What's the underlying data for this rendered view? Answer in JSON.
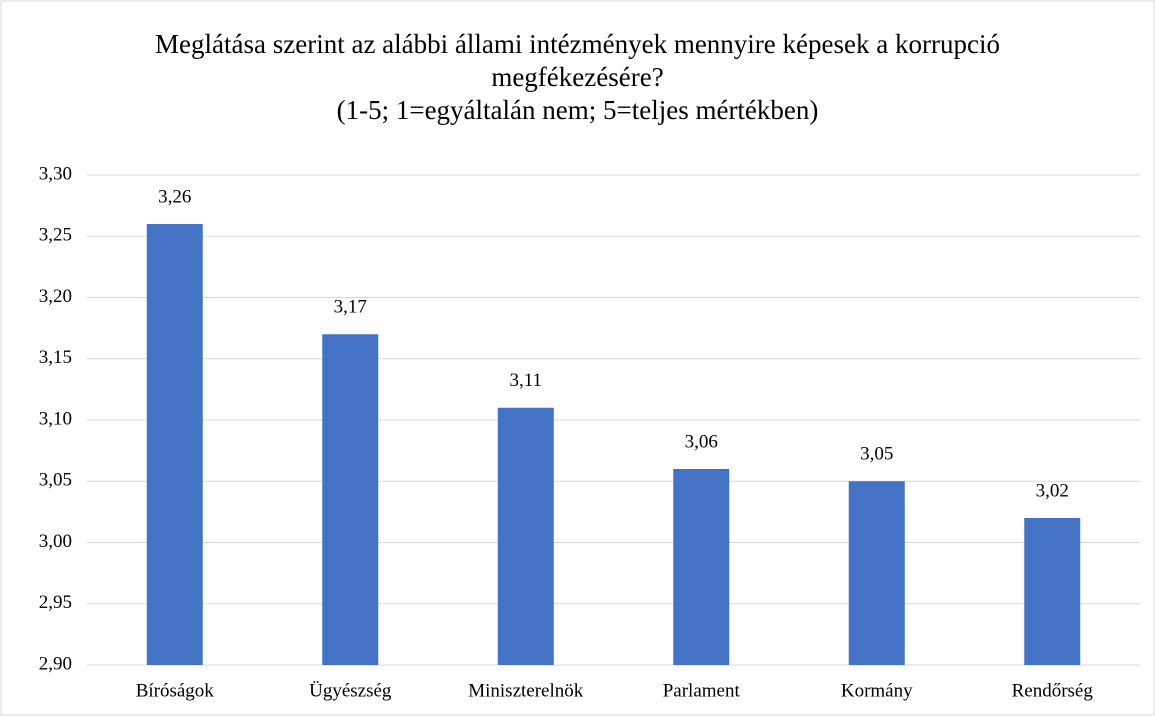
{
  "chart_data": {
    "type": "bar",
    "title": "Meglátása szerint az alábbi állami intézmények mennyire képesek a korrupció megfékezésére?",
    "subtitle": "(1-5; 1=egyáltalán nem; 5=teljes mértékben)",
    "categories": [
      "Bíróságok",
      "Ügyészség",
      "Miniszterelnök",
      "Parlament",
      "Kormány",
      "Rendőrség"
    ],
    "values": [
      3.26,
      3.17,
      3.11,
      3.06,
      3.05,
      3.02
    ],
    "value_labels": [
      "3,26",
      "3,17",
      "3,11",
      "3,06",
      "3,05",
      "3,02"
    ],
    "color": "#4472c4",
    "ylim": [
      2.9,
      3.3
    ],
    "yticks": [
      {
        "value": 2.9,
        "label": "2,90"
      },
      {
        "value": 2.95,
        "label": "2,95"
      },
      {
        "value": 3.0,
        "label": "3,00"
      },
      {
        "value": 3.05,
        "label": "3,05"
      },
      {
        "value": 3.1,
        "label": "3,10"
      },
      {
        "value": 3.15,
        "label": "3,15"
      },
      {
        "value": 3.2,
        "label": "3,20"
      },
      {
        "value": 3.25,
        "label": "3,25"
      },
      {
        "value": 3.3,
        "label": "3,30"
      }
    ],
    "grid": true
  }
}
